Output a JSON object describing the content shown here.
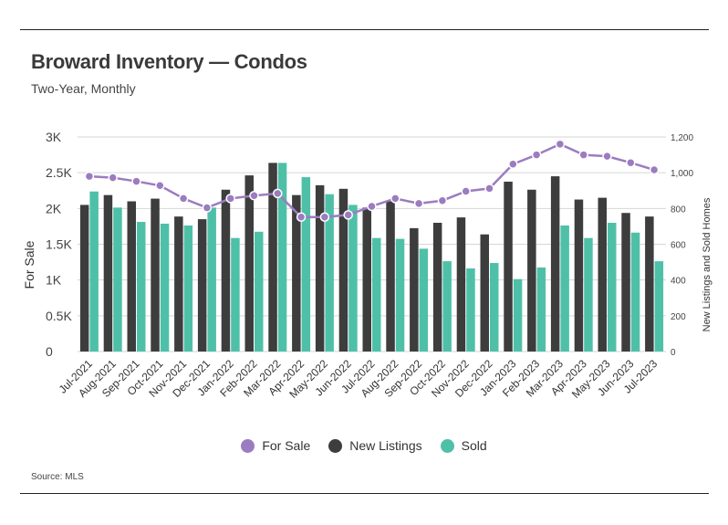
{
  "header": {
    "title": "Broward Inventory — Condos",
    "subtitle": "Two-Year, Monthly"
  },
  "source": "Source:  MLS",
  "colors": {
    "for_sale": "#9b7cc0",
    "new_listings": "#3d3d3d",
    "sold": "#4fc0a8",
    "grid": "#d6d6d6"
  },
  "chart_data": {
    "type": "bar",
    "title": "Broward Inventory — Condos",
    "subtitle": "Two-Year, Monthly",
    "ylabel": "For Sale",
    "y2label": "New Listings and Sold Homes",
    "ylim": [
      0,
      3000
    ],
    "y2lim": [
      0,
      1200
    ],
    "yticks": [
      "0",
      "0.5K",
      "1K",
      "1.5K",
      "2K",
      "2.5K",
      "3K"
    ],
    "y2ticks": [
      "0",
      "200",
      "400",
      "600",
      "800",
      "1,000",
      "1,200"
    ],
    "grid": true,
    "legend_position": "bottom",
    "categories": [
      "Jul-2021",
      "Aug-2021",
      "Sep-2021",
      "Oct-2021",
      "Nov-2021",
      "Dec-2021",
      "Jan-2022",
      "Feb-2022",
      "Mar-2022",
      "Apr-2022",
      "May-2022",
      "Jun-2022",
      "Jul-2022",
      "Aug-2022",
      "Sep-2022",
      "Oct-2022",
      "Nov-2022",
      "Dec-2022",
      "Jan-2023",
      "Feb-2023",
      "Mar-2023",
      "Apr-2023",
      "May-2023",
      "Jun-2023",
      "Jul-2023"
    ],
    "series": [
      {
        "name": "For Sale",
        "type": "line",
        "axis": "left",
        "values": [
          2450,
          2430,
          2380,
          2320,
          2140,
          2010,
          2140,
          2180,
          2210,
          1880,
          1880,
          1910,
          2030,
          2140,
          2070,
          2110,
          2240,
          2280,
          2620,
          2750,
          2900,
          2750,
          2730,
          2640,
          2540
        ]
      },
      {
        "name": "New Listings",
        "type": "bar",
        "axis": "right",
        "values": [
          820,
          875,
          840,
          855,
          755,
          740,
          905,
          985,
          1055,
          875,
          930,
          910,
          805,
          840,
          690,
          720,
          750,
          655,
          950,
          905,
          980,
          850,
          860,
          775,
          755
        ]
      },
      {
        "name": "Sold",
        "type": "bar",
        "axis": "right",
        "values": [
          895,
          805,
          725,
          715,
          705,
          805,
          635,
          670,
          1055,
          975,
          880,
          820,
          635,
          630,
          575,
          505,
          465,
          495,
          405,
          470,
          705,
          635,
          720,
          665,
          505
        ]
      }
    ]
  }
}
